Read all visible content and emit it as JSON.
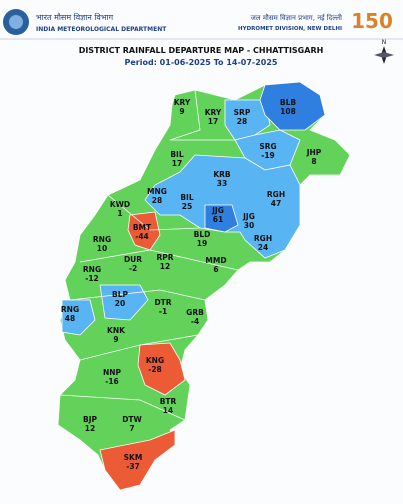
{
  "header": {
    "left_hindi": "भारत मौसम विज्ञान विभाग",
    "left_english": "INDIA METEOROLOGICAL DEPARTMENT",
    "right_hindi": "जल मौसम विज्ञान प्रभाग, नई दिल्ली",
    "right_english": "HYDROMET DIVISION, NEW DELHI",
    "logo_text": "150",
    "title": "DISTRICT RAINFALL DEPARTURE MAP - CHHATTISGARH",
    "period": "Period: 01-06-2025 To 14-07-2025",
    "north": "N"
  },
  "districts": [
    {
      "code": "KRY",
      "value": 9,
      "color": "#62d25a"
    },
    {
      "code": "KRY",
      "value": 17,
      "color": "#62d25a"
    },
    {
      "code": "SRP",
      "value": 28,
      "color": "#58b4f2"
    },
    {
      "code": "BLB",
      "value": 108,
      "color": "#2f7fe0"
    },
    {
      "code": "BIL",
      "value": 17,
      "color": "#62d25a"
    },
    {
      "code": "SRG",
      "value": -19,
      "color": "#58b4f2"
    },
    {
      "code": "JHP",
      "value": 8,
      "color": "#62d25a"
    },
    {
      "code": "KRB",
      "value": 33,
      "color": "#58b4f2"
    },
    {
      "code": "MNG",
      "value": 28,
      "color": "#58b4f2"
    },
    {
      "code": "BIL",
      "value": 25,
      "color": "#58b4f2"
    },
    {
      "code": "RGH",
      "value": 47,
      "color": "#58b4f2"
    },
    {
      "code": "KWD",
      "value": 1,
      "color": "#62d25a"
    },
    {
      "code": "JJG",
      "value": 61,
      "color": "#2f7fe0"
    },
    {
      "code": "JJG",
      "value": 30,
      "color": "#58b4f2"
    },
    {
      "code": "BMT",
      "value": -44,
      "color": "#ec5b35"
    },
    {
      "code": "BLD",
      "value": 19,
      "color": "#62d25a"
    },
    {
      "code": "RGH",
      "value": 24,
      "color": "#58b4f2"
    },
    {
      "code": "RNG",
      "value": 10,
      "color": "#62d25a"
    },
    {
      "code": "DUR",
      "value": -2,
      "color": "#62d25a"
    },
    {
      "code": "RPR",
      "value": 12,
      "color": "#62d25a"
    },
    {
      "code": "MMD",
      "value": 6,
      "color": "#62d25a"
    },
    {
      "code": "RNG",
      "value": -12,
      "color": "#62d25a"
    },
    {
      "code": "BLP",
      "value": 20,
      "color": "#58b4f2"
    },
    {
      "code": "DTR",
      "value": -1,
      "color": "#62d25a"
    },
    {
      "code": "RNG",
      "value": 48,
      "color": "#58b4f2"
    },
    {
      "code": "GRB",
      "value": -4,
      "color": "#62d25a"
    },
    {
      "code": "KNK",
      "value": 9,
      "color": "#62d25a"
    },
    {
      "code": "KNG",
      "value": -28,
      "color": "#ec5b35"
    },
    {
      "code": "NNP",
      "value": -16,
      "color": "#62d25a"
    },
    {
      "code": "BTR",
      "value": 14,
      "color": "#62d25a"
    },
    {
      "code": "BJP",
      "value": 12,
      "color": "#62d25a"
    },
    {
      "code": "DTW",
      "value": 7,
      "color": "#62d25a"
    },
    {
      "code": "SKM",
      "value": -37,
      "color": "#ec5b35"
    }
  ]
}
